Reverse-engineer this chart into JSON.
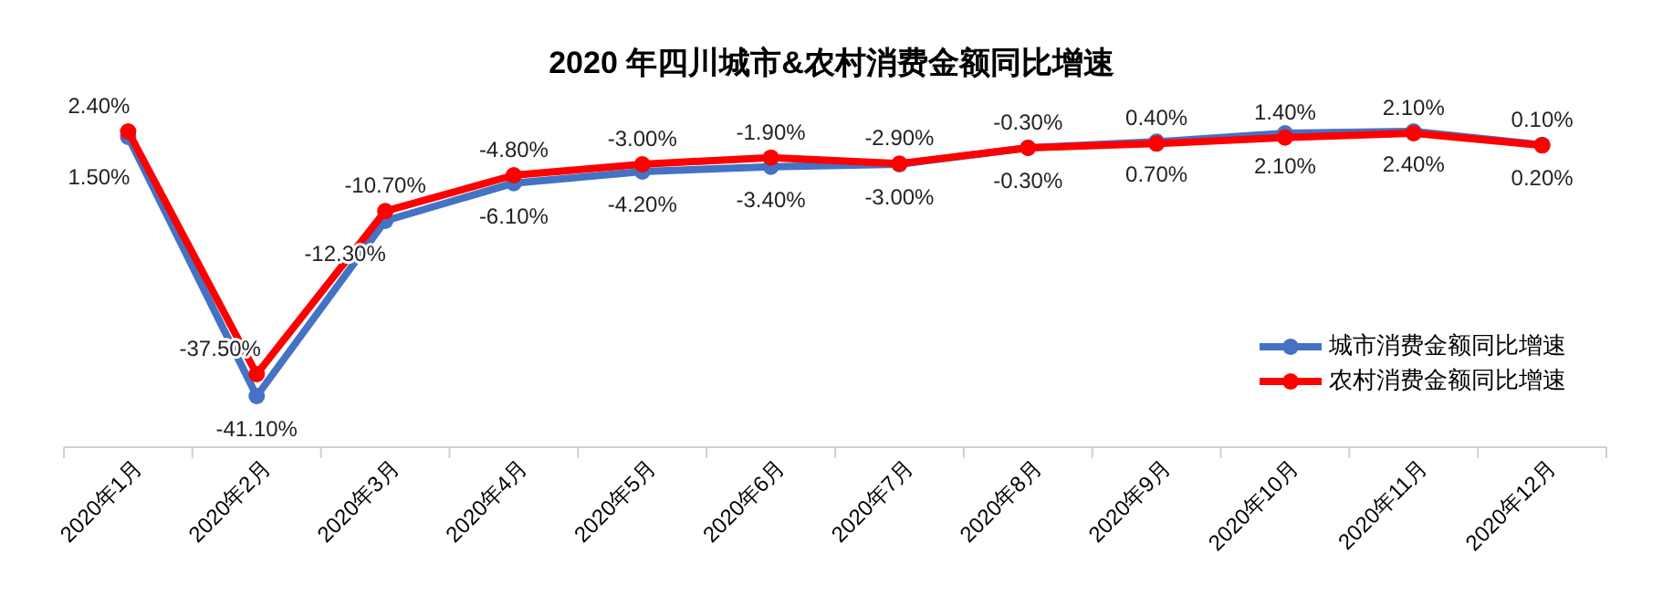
{
  "chart_data": {
    "type": "line",
    "title": "2020 年四川城市&农村消费金额同比增速",
    "categories": [
      "2020年1月",
      "2020年2月",
      "2020年3月",
      "2020年4月",
      "2020年5月",
      "2020年6月",
      "2020年7月",
      "2020年8月",
      "2020年9月",
      "2020年10月",
      "2020年11月",
      "2020年12月"
    ],
    "series": [
      {
        "name": "城市消费金额同比增速",
        "color": "#4472c4",
        "values": [
          1.5,
          -41.1,
          -12.3,
          -6.1,
          -4.2,
          -3.4,
          -3.0,
          -0.3,
          0.7,
          2.1,
          2.4,
          0.2
        ],
        "value_labels": [
          "1.50%",
          "-41.10%",
          "-12.30%",
          "-6.10%",
          "-4.20%",
          "-3.40%",
          "-3.00%",
          "-0.30%",
          "0.70%",
          "2.10%",
          "2.40%",
          "0.20%"
        ]
      },
      {
        "name": "农村消费金额同比增速",
        "color": "#ff0000",
        "values": [
          2.4,
          -37.5,
          -10.7,
          -4.8,
          -3.0,
          -1.9,
          -2.9,
          -0.3,
          0.4,
          1.4,
          2.1,
          0.1
        ],
        "value_labels": [
          "2.40%",
          "-37.50%",
          "-10.70%",
          "-4.80%",
          "-3.00%",
          "-1.90%",
          "-2.90%",
          "-0.30%",
          "0.40%",
          "1.40%",
          "2.10%",
          "0.10%"
        ]
      }
    ],
    "legend": "bottom right",
    "marker": "circle",
    "line_style": "solid",
    "grid": false
  }
}
